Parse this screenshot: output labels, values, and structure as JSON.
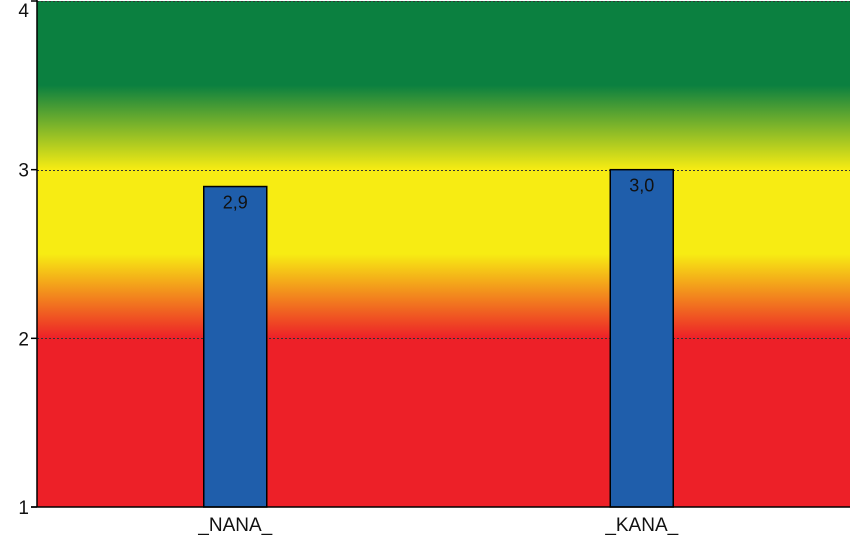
{
  "chart_data": {
    "type": "bar",
    "categories": [
      "_NANA_",
      "_KANA_"
    ],
    "values": [
      2.9,
      3.0
    ],
    "data_labels": [
      "2,9",
      "3,0"
    ],
    "title": "",
    "xlabel": "",
    "ylabel": "",
    "ylim": [
      1,
      4
    ],
    "yticks": [
      1,
      2,
      3,
      4
    ],
    "ytick_labels": [
      "1",
      "2",
      "3",
      "4"
    ],
    "grid": true,
    "legend": "none",
    "bar_color": "#1f5eab",
    "background_bands": [
      {
        "from": 1.0,
        "to": 2.0,
        "color": "#ed2028"
      },
      {
        "from": 2.0,
        "to": 2.5,
        "gradient": [
          "#ed2028",
          "#f7ec13"
        ]
      },
      {
        "from": 2.5,
        "to": 3.0,
        "color": "#f7ec13"
      },
      {
        "from": 3.0,
        "to": 3.5,
        "gradient": [
          "#f7ec13",
          "#0b8040"
        ]
      },
      {
        "from": 3.5,
        "to": 4.0,
        "color": "#0b8040"
      }
    ]
  }
}
